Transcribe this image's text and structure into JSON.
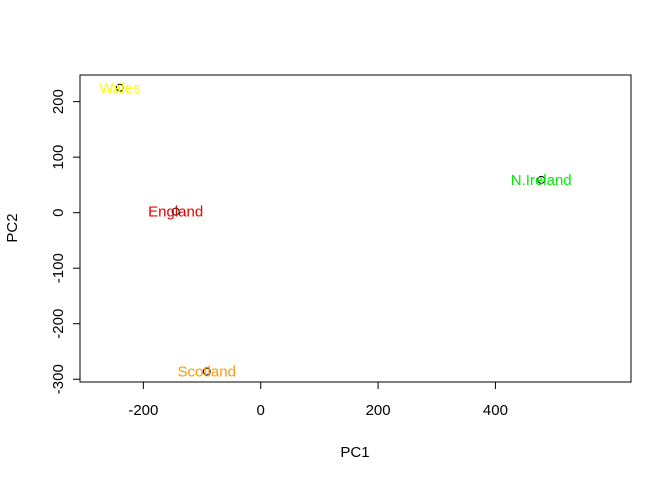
{
  "chart_data": {
    "type": "scatter",
    "title": "",
    "xlabel": "PC1",
    "ylabel": "PC2",
    "xlim": [
      -308,
      631
    ],
    "ylim": [
      -305,
      248
    ],
    "xticks": [
      -200,
      0,
      200,
      400
    ],
    "xtick_labels": [
      "-200",
      "0",
      "200",
      "400"
    ],
    "yticks": [
      -300,
      -200,
      -100,
      0,
      100,
      200
    ],
    "ytick_labels": [
      "-300",
      "-200",
      "-100",
      "0",
      "100",
      "200"
    ],
    "grid": false,
    "legend": "none",
    "points": [
      {
        "label": "England",
        "x": -145,
        "y": 2,
        "color": "#e60000"
      },
      {
        "label": "Wales",
        "x": -240,
        "y": 225,
        "color": "#ffff00"
      },
      {
        "label": "Scotland",
        "x": -92,
        "y": -286,
        "color": "#ff9900"
      },
      {
        "label": "N.Ireland",
        "x": 478,
        "y": 59,
        "color": "#00ee00"
      }
    ]
  }
}
